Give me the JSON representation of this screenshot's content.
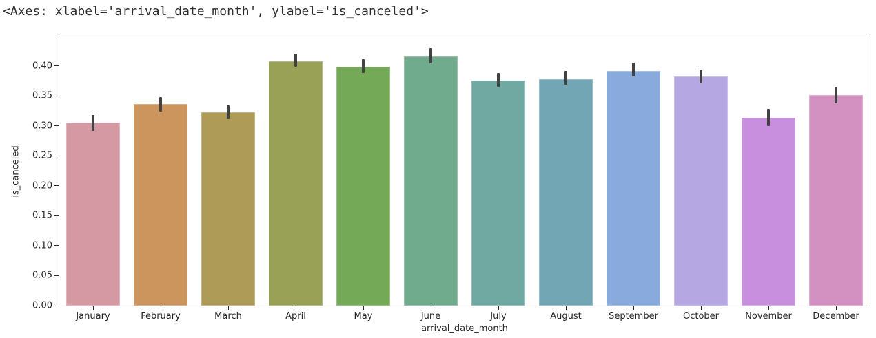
{
  "notebook_output": {
    "repr_text": "<Axes: xlabel='arrival_date_month', ylabel='is_canceled'>"
  },
  "chart_data": {
    "type": "bar",
    "title": "",
    "xlabel": "arrival_date_month",
    "ylabel": "is_canceled",
    "categories": [
      "January",
      "February",
      "March",
      "April",
      "May",
      "June",
      "July",
      "August",
      "September",
      "October",
      "November",
      "December"
    ],
    "series": [
      {
        "name": "is_canceled",
        "values": [
          0.305,
          0.336,
          0.323,
          0.408,
          0.398,
          0.416,
          0.375,
          0.378,
          0.392,
          0.382,
          0.313,
          0.351
        ],
        "error_low": [
          0.292,
          0.324,
          0.311,
          0.398,
          0.388,
          0.404,
          0.365,
          0.369,
          0.382,
          0.372,
          0.3,
          0.338
        ],
        "error_high": [
          0.318,
          0.348,
          0.334,
          0.42,
          0.411,
          0.429,
          0.388,
          0.392,
          0.405,
          0.394,
          0.327,
          0.365
        ]
      }
    ],
    "ylim": [
      0,
      0.449
    ],
    "yticks": [
      "0.00",
      "0.05",
      "0.10",
      "0.15",
      "0.20",
      "0.25",
      "0.30",
      "0.35",
      "0.40"
    ],
    "grid": false,
    "legend": "none",
    "bar_width_fraction": 0.8,
    "bar_colors": [
      "#d599a4",
      "#cc955e",
      "#ad9b57",
      "#99a156",
      "#74a957",
      "#6fab8c",
      "#70a8a2",
      "#73a6b4",
      "#89aadd",
      "#b4a7e2",
      "#c98fdf",
      "#d391c2"
    ],
    "error_bar_color": "#424242",
    "axis_color": "#2a2a2a",
    "text_color": "#262626",
    "background_color": "#ffffff"
  }
}
